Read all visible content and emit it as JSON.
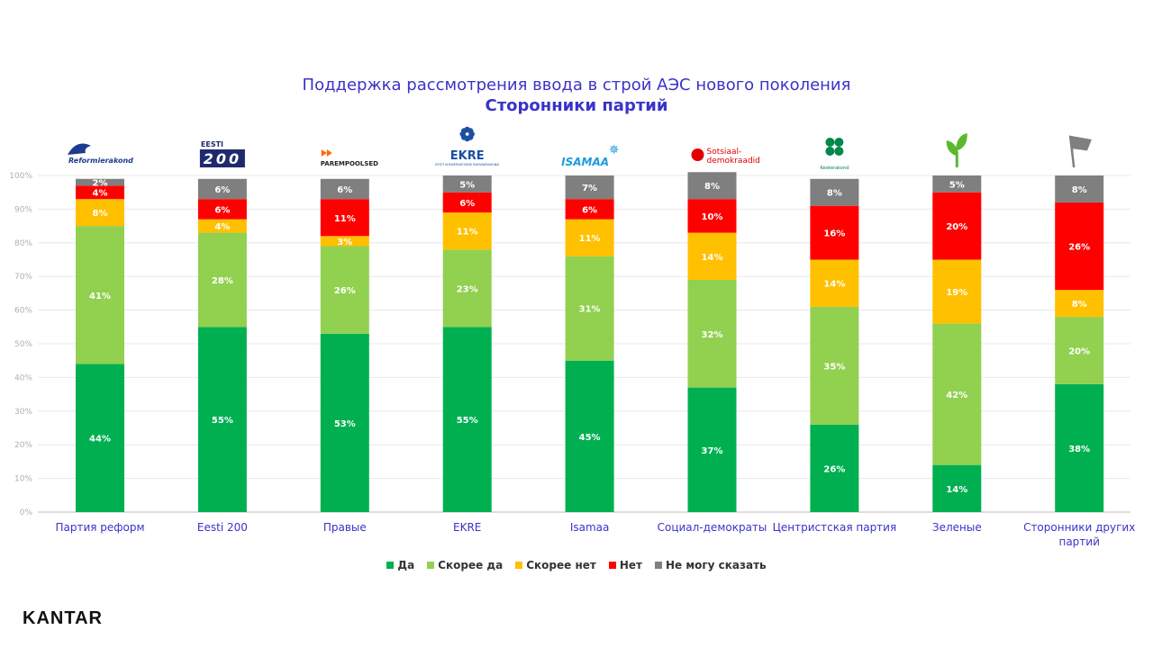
{
  "chart_data": {
    "type": "bar",
    "stacked": true,
    "title": "Поддержка рассмотрения ввода в строй АЭС нового поколения",
    "subtitle": "Сторонники партий",
    "ylim": [
      0,
      100
    ],
    "yticks": [
      "0%",
      "10%",
      "20%",
      "30%",
      "40%",
      "50%",
      "60%",
      "70%",
      "80%",
      "90%",
      "100%"
    ],
    "grid": true,
    "legend_position": "bottom",
    "categories": [
      "Партия реформ",
      "Eesti 200",
      "Правые",
      "EKRE",
      "Isamaa",
      "Социал-демократы",
      "Центристская партия",
      "Зеленые",
      "Сторонники других партий"
    ],
    "series": [
      {
        "name": "Да",
        "color": "#00b050",
        "values": [
          44,
          55,
          53,
          55,
          45,
          37,
          26,
          14,
          38
        ],
        "labels": [
          "44%",
          "55%",
          "53%",
          "55%",
          "45%",
          "37%",
          "26%",
          "14%",
          "38%"
        ]
      },
      {
        "name": "Скорее да",
        "color": "#92d050",
        "values": [
          41,
          28,
          26,
          23,
          31,
          32,
          35,
          42,
          20
        ],
        "labels": [
          "41%",
          "28%",
          "26%",
          "23%",
          "31%",
          "32%",
          "35%",
          "42%",
          "20%"
        ]
      },
      {
        "name": "Скорее нет",
        "color": "#ffc000",
        "values": [
          8,
          4,
          3,
          11,
          11,
          14,
          14,
          19,
          8
        ],
        "labels": [
          "8%",
          "4%",
          "3%",
          "11%",
          "11%",
          "14%",
          "14%",
          "19%",
          "8%"
        ]
      },
      {
        "name": "Нет",
        "color": "#ff0000",
        "values": [
          4,
          6,
          11,
          6,
          6,
          10,
          16,
          20,
          26
        ],
        "labels": [
          "4%",
          "6%",
          "11%",
          "6%",
          "6%",
          "10%",
          "16%",
          "20%",
          "26%"
        ]
      },
      {
        "name": "Не могу сказать",
        "color": "#7f7f7f",
        "values": [
          2,
          6,
          6,
          5,
          7,
          8,
          8,
          5,
          8
        ],
        "labels": [
          "2%",
          "6%",
          "6%",
          "5%",
          "7%",
          "8%",
          "8%",
          "5%",
          "8%"
        ]
      }
    ],
    "category_labels_display": [
      [
        "Партия реформ"
      ],
      [
        "Eesti 200"
      ],
      [
        "Правые"
      ],
      [
        "EKRE"
      ],
      [
        "Isamaa"
      ],
      [
        "Социал-демократы"
      ],
      [
        "Центристская партия"
      ],
      [
        "Зеленые"
      ],
      [
        "Сторонники других",
        "партий"
      ]
    ]
  },
  "logos": [
    {
      "text": "Reformierakond",
      "color": "#1d3c8f",
      "icon": "squirrel-icon"
    },
    {
      "text_top": "EESTI",
      "text_main": "200",
      "color": "#1f2a6e",
      "icon": "eesti200-logo"
    },
    {
      "text": "PAREMPOOLSED",
      "color": "#222222",
      "accent": "#ff6a00",
      "icon": "fast-forward-icon"
    },
    {
      "text": "EKRE",
      "sub": "EESTI KONSERVATIIVNE RAHVAERAKOND",
      "color": "#1a4fa3",
      "icon": "cornflower-icon"
    },
    {
      "text": "ISAMAA",
      "color": "#1e9be0",
      "icon": "star-icon"
    },
    {
      "text1": "Sotsiaal-",
      "text2": "demokraadid",
      "color": "#e10000",
      "icon": "rose-icon"
    },
    {
      "text": "Keskerakond",
      "color": "#00874a",
      "icon": "squirrel-clover-icon"
    },
    {
      "color": "#5cb82f",
      "icon": "sprout-icon"
    },
    {
      "color": "#7f7f7f",
      "icon": "flag-icon"
    }
  ],
  "brand": "KANTAR"
}
